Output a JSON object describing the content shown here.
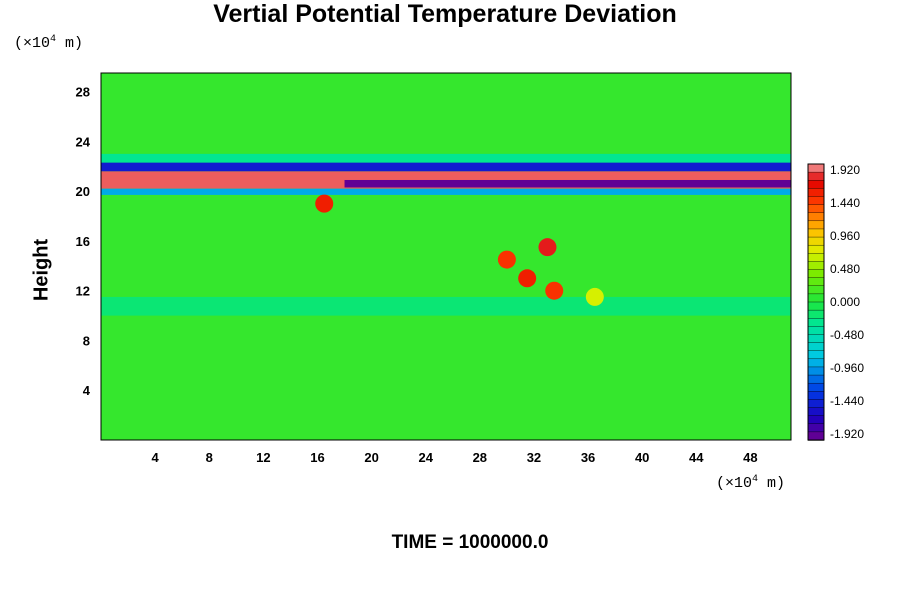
{
  "chart_data": {
    "type": "heatmap",
    "title": "Vertial Potential Temperature Deviation",
    "ylabel": "Height",
    "xlabel": "",
    "y_unit": {
      "prefix": "(×10",
      "exp": "4",
      "suffix": " m)"
    },
    "x_unit": {
      "prefix": "(×10",
      "exp": "4",
      "suffix": " m)"
    },
    "x_ticks": [
      4,
      8,
      12,
      16,
      20,
      24,
      28,
      32,
      36,
      40,
      44,
      48
    ],
    "y_ticks": [
      4,
      8,
      12,
      16,
      20,
      24,
      28
    ],
    "xlim": [
      0,
      51
    ],
    "ylim": [
      0,
      29.5
    ],
    "colorbar": {
      "ticks": [
        "1.920",
        "1.440",
        "0.960",
        "0.480",
        "0.000",
        "-0.480",
        "-0.960",
        "-1.440",
        "-1.920"
      ],
      "range": [
        -2.0,
        2.0
      ],
      "levels": 34
    },
    "features": [
      {
        "kind": "background",
        "value": 0.1
      },
      {
        "kind": "band",
        "x": [
          0,
          51
        ],
        "y": [
          20.2,
          21.6
        ],
        "value": 1.9
      },
      {
        "kind": "band",
        "x": [
          0,
          51
        ],
        "y": [
          21.6,
          22.3
        ],
        "value": -1.5
      },
      {
        "kind": "band",
        "x": [
          0,
          51
        ],
        "y": [
          19.7,
          20.2
        ],
        "value": -0.9
      },
      {
        "kind": "band",
        "x": [
          18,
          51
        ],
        "y": [
          20.3,
          20.9
        ],
        "value": -1.95
      },
      {
        "kind": "band",
        "x": [
          0,
          51
        ],
        "y": [
          22.3,
          23.0
        ],
        "value": -0.3
      },
      {
        "kind": "band",
        "x": [
          0,
          51
        ],
        "y": [
          10.0,
          11.5
        ],
        "value": -0.2
      },
      {
        "kind": "blob",
        "x": 33.0,
        "y": 15.5,
        "value": 1.8
      },
      {
        "kind": "blob",
        "x": 31.5,
        "y": 13.0,
        "value": 1.6
      },
      {
        "kind": "blob",
        "x": 30.0,
        "y": 14.5,
        "value": 1.5
      },
      {
        "kind": "blob",
        "x": 33.5,
        "y": 12.0,
        "value": 1.5
      },
      {
        "kind": "blob",
        "x": 16.5,
        "y": 19.0,
        "value": 1.6
      },
      {
        "kind": "blob",
        "x": 36.5,
        "y": 11.5,
        "value": 0.7
      }
    ]
  },
  "footer": {
    "time_label": "TIME = 1000000.0"
  }
}
